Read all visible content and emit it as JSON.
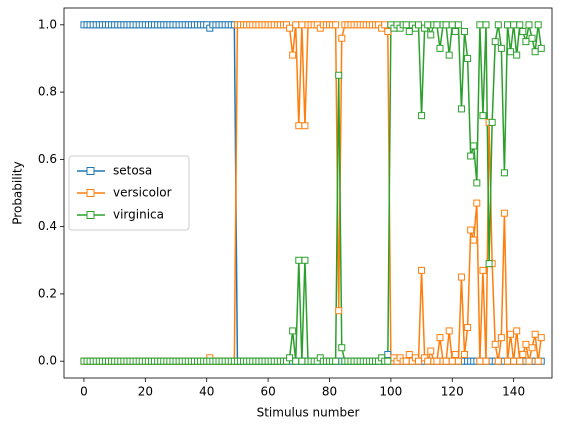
{
  "chart_data": {
    "type": "line",
    "xlabel": "Stimulus number",
    "ylabel": "Probability",
    "x": [
      0,
      1,
      2,
      3,
      4,
      5,
      6,
      7,
      8,
      9,
      10,
      11,
      12,
      13,
      14,
      15,
      16,
      17,
      18,
      19,
      20,
      21,
      22,
      23,
      24,
      25,
      26,
      27,
      28,
      29,
      30,
      31,
      32,
      33,
      34,
      35,
      36,
      37,
      38,
      39,
      40,
      41,
      42,
      43,
      44,
      45,
      46,
      47,
      48,
      49,
      50,
      51,
      52,
      53,
      54,
      55,
      56,
      57,
      58,
      59,
      60,
      61,
      62,
      63,
      64,
      65,
      66,
      67,
      68,
      69,
      70,
      71,
      72,
      73,
      74,
      75,
      76,
      77,
      78,
      79,
      80,
      81,
      82,
      83,
      84,
      85,
      86,
      87,
      88,
      89,
      90,
      91,
      92,
      93,
      94,
      95,
      96,
      97,
      98,
      99,
      100,
      101,
      102,
      103,
      104,
      105,
      106,
      107,
      108,
      109,
      110,
      111,
      112,
      113,
      114,
      115,
      116,
      117,
      118,
      119,
      120,
      121,
      122,
      123,
      124,
      125,
      126,
      127,
      128,
      129,
      130,
      131,
      132,
      133,
      134,
      135,
      136,
      137,
      138,
      139,
      140,
      141,
      142,
      143,
      144,
      145,
      146,
      147,
      148,
      149
    ],
    "series": [
      {
        "name": "setosa",
        "color": "#1f77b4",
        "values": [
          1,
          1,
          1,
          1,
          1,
          1,
          1,
          1,
          1,
          1,
          1,
          1,
          1,
          1,
          1,
          1,
          1,
          1,
          1,
          1,
          1,
          1,
          1,
          1,
          1,
          1,
          1,
          1,
          1,
          1,
          1,
          1,
          1,
          1,
          1,
          1,
          1,
          1,
          1,
          1,
          1,
          0.99,
          1,
          1,
          1,
          1,
          1,
          1,
          1,
          1,
          0,
          0,
          0,
          0,
          0,
          0,
          0,
          0,
          0,
          0,
          0,
          0,
          0,
          0,
          0,
          0,
          0,
          0,
          0,
          0,
          0,
          0,
          0,
          0,
          0,
          0,
          0,
          0,
          0,
          0,
          0,
          0,
          0,
          0,
          0,
          0,
          0,
          0,
          0,
          0,
          0,
          0,
          0,
          0,
          0,
          0,
          0,
          0,
          0,
          0.02,
          0,
          0,
          0,
          0,
          0,
          0,
          0,
          0,
          0,
          0,
          0,
          0,
          0,
          0,
          0,
          0,
          0,
          0,
          0,
          0,
          0,
          0,
          0,
          0,
          0,
          0,
          0,
          0,
          0,
          0,
          0,
          0,
          0,
          0,
          0,
          0,
          0,
          0,
          0,
          0,
          0,
          0,
          0,
          0,
          0,
          0,
          0,
          0,
          0,
          0
        ]
      },
      {
        "name": "versicolor",
        "color": "#ff7f0e",
        "values": [
          0,
          0,
          0,
          0,
          0,
          0,
          0,
          0,
          0,
          0,
          0,
          0,
          0,
          0,
          0,
          0,
          0,
          0,
          0,
          0,
          0,
          0,
          0,
          0,
          0,
          0,
          0,
          0,
          0,
          0,
          0,
          0,
          0,
          0,
          0,
          0,
          0,
          0,
          0,
          0,
          0,
          0.01,
          0,
          0,
          0,
          0,
          0,
          0,
          0,
          0,
          1,
          1,
          1,
          1,
          1,
          1,
          1,
          1,
          1,
          1,
          1,
          1,
          1,
          1,
          1,
          1,
          1,
          0.99,
          0.91,
          1,
          0.7,
          1,
          0.7,
          1,
          1,
          1,
          1,
          0.99,
          1,
          1,
          1,
          1,
          1,
          0.15,
          0.96,
          1,
          1,
          1,
          1,
          1,
          1,
          1,
          1,
          1,
          1,
          1,
          1,
          0.99,
          1,
          0.98,
          0,
          0.01,
          0,
          0.01,
          0,
          0,
          0.02,
          0,
          0.01,
          0,
          0.27,
          0.01,
          0,
          0.03,
          0,
          0,
          0.07,
          0,
          0,
          0.09,
          0,
          0.02,
          0,
          0.25,
          0.02,
          0.1,
          0.39,
          0.36,
          0.47,
          0,
          0.27,
          0,
          0.71,
          0.29,
          0.05,
          0,
          0.07,
          0.44,
          0,
          0.08,
          0,
          0.09,
          0,
          0.02,
          0.05,
          0,
          0.04,
          0.08,
          0,
          0.07
        ]
      },
      {
        "name": "virginica",
        "color": "#2ca02c",
        "values": [
          0,
          0,
          0,
          0,
          0,
          0,
          0,
          0,
          0,
          0,
          0,
          0,
          0,
          0,
          0,
          0,
          0,
          0,
          0,
          0,
          0,
          0,
          0,
          0,
          0,
          0,
          0,
          0,
          0,
          0,
          0,
          0,
          0,
          0,
          0,
          0,
          0,
          0,
          0,
          0,
          0,
          0,
          0,
          0,
          0,
          0,
          0,
          0,
          0,
          0,
          0,
          0,
          0,
          0,
          0,
          0,
          0,
          0,
          0,
          0,
          0,
          0,
          0,
          0,
          0,
          0,
          0,
          0.01,
          0.09,
          0,
          0.3,
          0,
          0.3,
          0,
          0,
          0,
          0,
          0.01,
          0,
          0,
          0,
          0,
          0,
          0.85,
          0.04,
          0,
          0,
          0,
          0,
          0,
          0,
          0,
          0,
          0,
          0,
          0,
          0,
          0.01,
          0,
          0,
          1,
          0.99,
          1,
          0.99,
          1,
          1,
          0.98,
          1,
          0.99,
          1,
          0.73,
          0.99,
          1,
          0.97,
          1,
          1,
          0.93,
          1,
          1,
          0.91,
          1,
          0.98,
          1,
          0.75,
          0.98,
          0.9,
          0.61,
          0.64,
          0.53,
          1,
          0.73,
          1,
          0.29,
          0.71,
          0.95,
          1,
          0.93,
          0.56,
          1,
          0.92,
          1,
          0.91,
          1,
          0.98,
          0.95,
          1,
          0.96,
          0.92,
          1,
          0.93
        ]
      }
    ],
    "xlim": [
      -6.5,
      152.5
    ],
    "xticks": [
      0,
      20,
      40,
      60,
      80,
      100,
      120,
      140
    ],
    "ylim": [
      -0.05,
      1.05
    ],
    "yticks": [
      {
        "value": 0,
        "label": "0.0"
      },
      0.2,
      0.4,
      0.6,
      0.8,
      {
        "value": 1,
        "label": "1.0"
      }
    ],
    "marker": "square",
    "marker_fill": "#ffffff",
    "legend": "center left",
    "grid": false
  }
}
